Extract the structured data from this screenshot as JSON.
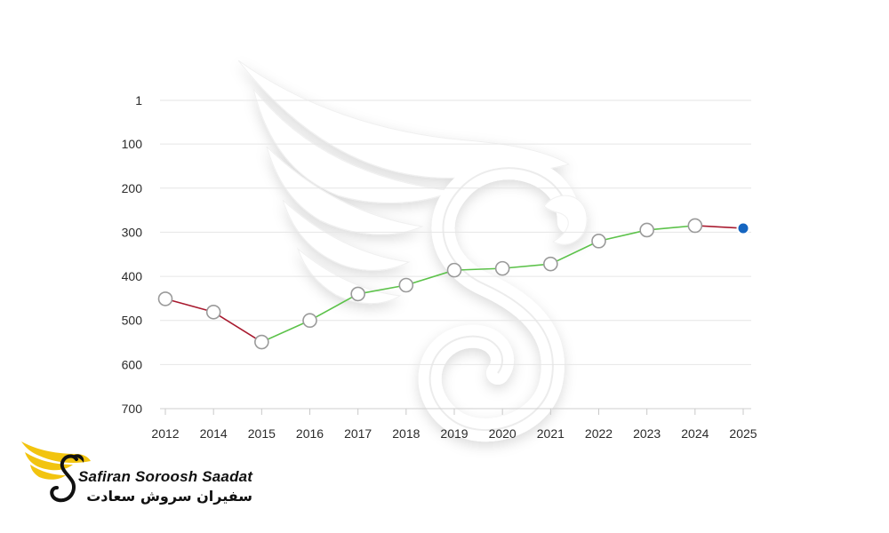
{
  "chart_data": {
    "type": "line",
    "title": "",
    "xlabel": "",
    "ylabel": "",
    "y_axis_inverted": true,
    "ylim": [
      1,
      700
    ],
    "y_ticks": [
      "1",
      "100",
      "200",
      "300",
      "400",
      "500",
      "600",
      "700"
    ],
    "y_tick_values": [
      1,
      100,
      200,
      300,
      400,
      500,
      600,
      700
    ],
    "categories": [
      "2012",
      "2014",
      "2015",
      "2016",
      "2017",
      "2018",
      "2019",
      "2020",
      "2021",
      "2022",
      "2023",
      "2024",
      "2025"
    ],
    "values": [
      451,
      481,
      549,
      500,
      440,
      420,
      386,
      382,
      372,
      320,
      295,
      285,
      291
    ],
    "segment_colors": [
      "#a8192e",
      "#a8192e",
      "#5cc24a",
      "#5cc24a",
      "#5cc24a",
      "#5cc24a",
      "#5cc24a",
      "#5cc24a",
      "#5cc24a",
      "#5cc24a",
      "#5cc24a",
      "#a8192e"
    ],
    "marker_fill": "#ffffff",
    "marker_stroke": "#9a9a9a",
    "highlight_fill": "#1565c0",
    "grid": true,
    "legend": "none"
  },
  "watermark": {
    "icon": "bird-s-icon"
  },
  "logo": {
    "latin_text": "Safiran Soroosh Saadat",
    "persian_text": "سفیران سروش سعادت",
    "wing_color": "#f2c40f",
    "ink_color": "#111111"
  }
}
